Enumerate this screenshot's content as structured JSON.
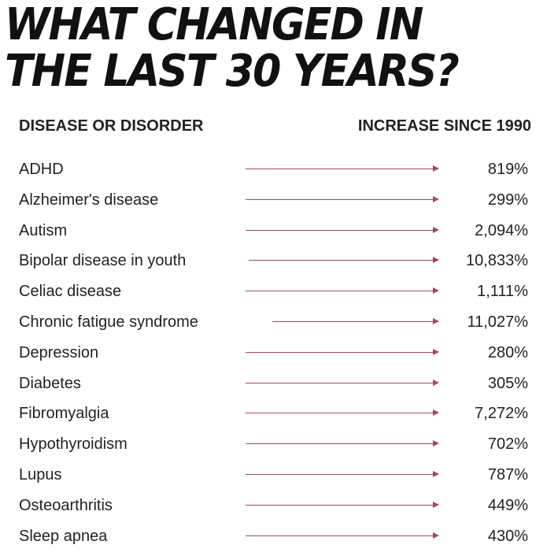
{
  "title": {
    "line1": "WHAT CHANGED IN",
    "line2": "THE LAST 30 YEARS?"
  },
  "headers": {
    "left": "DISEASE OR DISORDER",
    "right": "INCREASE SINCE 1990"
  },
  "accent_color": "#a14a5c",
  "rows": [
    {
      "name": "ADHD",
      "value": "819%"
    },
    {
      "name": "Alzheimer's disease",
      "value": "299%"
    },
    {
      "name": "Autism",
      "value": "2,094%"
    },
    {
      "name": "Bipolar disease in youth",
      "value": "10,833%"
    },
    {
      "name": "Celiac disease",
      "value": "1,111%"
    },
    {
      "name": "Chronic fatigue syndrome",
      "value": "11,027%"
    },
    {
      "name": "Depression",
      "value": "280%"
    },
    {
      "name": "Diabetes",
      "value": "305%"
    },
    {
      "name": "Fibromyalgia",
      "value": "7,272%"
    },
    {
      "name": "Hypothyroidism",
      "value": "702%"
    },
    {
      "name": "Lupus",
      "value": "787%"
    },
    {
      "name": "Osteoarthritis",
      "value": "449%"
    },
    {
      "name": "Sleep apnea",
      "value": "430%"
    }
  ]
}
